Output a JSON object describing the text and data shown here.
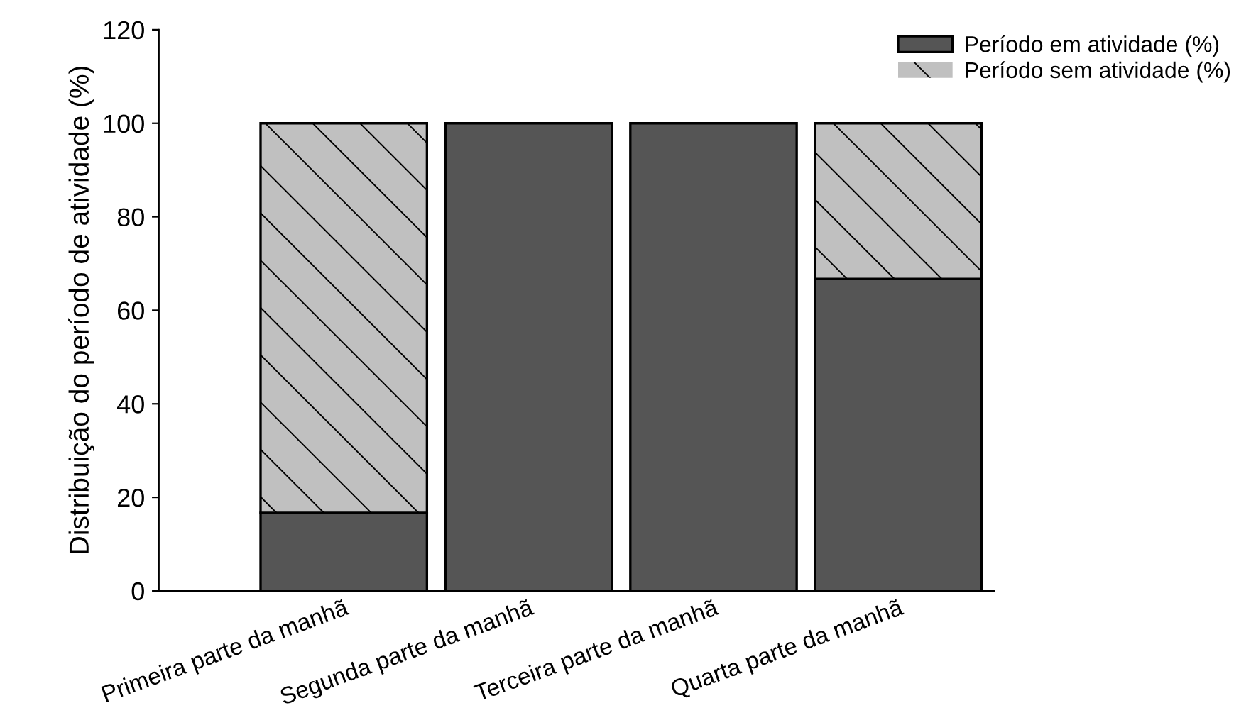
{
  "chart_data": {
    "type": "bar",
    "stacked": true,
    "ylabel": "Distribuição do período de atividade (%)",
    "categories": [
      "Primeira parte da manhã",
      "Segunda parte da manhã",
      "Terceira parte da manhã",
      "Quarta parte da manhã"
    ],
    "series": [
      {
        "name": "Período em atividade (%)",
        "color": "#555555",
        "values": [
          16.7,
          100,
          100,
          66.7
        ]
      },
      {
        "name": "Período sem atividade (%)",
        "color": "#c0c0c0",
        "values": [
          83.3,
          0,
          0,
          33.3
        ]
      }
    ],
    "ylim": [
      0,
      120
    ],
    "yticks": [
      0,
      20,
      40,
      60,
      80,
      100,
      120
    ],
    "legend": "top right"
  }
}
